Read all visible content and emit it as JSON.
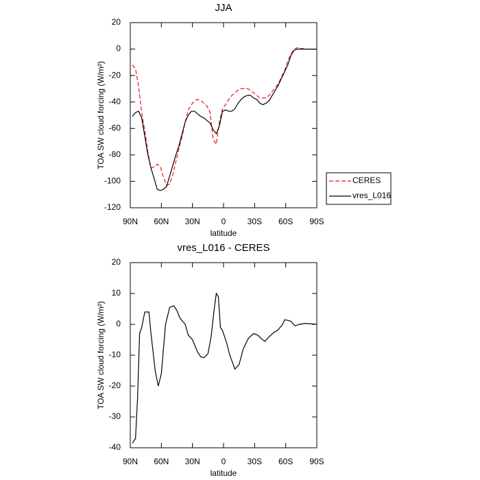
{
  "chart_data": [
    {
      "type": "line",
      "title": "JJA",
      "xlabel": "latitude",
      "ylabel": "TOA SW cloud forcing (W/m²)",
      "xlim": [
        90,
        -90
      ],
      "xticks": [
        {
          "value": 90,
          "label": "90N"
        },
        {
          "value": 60,
          "label": "60N"
        },
        {
          "value": 30,
          "label": "30N"
        },
        0,
        {
          "value": -30,
          "label": "30S"
        },
        {
          "value": -60,
          "label": "60S"
        },
        {
          "value": -90,
          "label": "90S"
        }
      ],
      "ylim": [
        -120,
        20
      ],
      "yticks": [
        -120,
        -100,
        -80,
        -60,
        -40,
        -20,
        0,
        20
      ],
      "legend": "right",
      "x": [
        88,
        85,
        82,
        79,
        76,
        73,
        70,
        67,
        64,
        61,
        58,
        55,
        52,
        49,
        46,
        43,
        40,
        37,
        34,
        31,
        28,
        25,
        22,
        19,
        16,
        13,
        10,
        7,
        4,
        1,
        -2,
        -5,
        -8,
        -11,
        -14,
        -17,
        -20,
        -23,
        -26,
        -29,
        -32,
        -35,
        -38,
        -41,
        -44,
        -47,
        -50,
        -53,
        -56,
        -59,
        -62,
        -65,
        -68,
        -71,
        -80,
        -90
      ],
      "series": [
        {
          "name": "CERES",
          "color": "#e8141c",
          "line_style": "dashed",
          "values": [
            -12,
            -15,
            -28,
            -48,
            -62,
            -78,
            -90,
            -89,
            -87,
            -89,
            -97,
            -103,
            -102,
            -95,
            -85,
            -75,
            -66,
            -55,
            -46,
            -42,
            -39,
            -38,
            -39,
            -41,
            -43,
            -48,
            -68,
            -72,
            -55,
            -45,
            -42,
            -38,
            -35,
            -33,
            -31,
            -30,
            -30,
            -30,
            -31,
            -33,
            -35,
            -37,
            -37,
            -37,
            -35,
            -32,
            -29,
            -26,
            -21,
            -16,
            -9,
            -4,
            0,
            1,
            0,
            0
          ]
        },
        {
          "name": "vres_L016",
          "color": "#000000",
          "line_style": "solid",
          "values": [
            -51,
            -48,
            -47,
            -52,
            -66,
            -80,
            -90,
            -98,
            -106,
            -107,
            -106,
            -104,
            -96,
            -88,
            -80,
            -73,
            -64,
            -55,
            -50,
            -47,
            -47,
            -49,
            -51,
            -52,
            -54,
            -56,
            -61,
            -64,
            -58,
            -47,
            -46,
            -47,
            -47,
            -45,
            -41,
            -38,
            -36,
            -35,
            -35,
            -37,
            -38,
            -41,
            -42,
            -41,
            -39,
            -35,
            -31,
            -27,
            -22,
            -17,
            -12,
            -5,
            -1,
            0,
            0,
            0
          ]
        }
      ]
    },
    {
      "type": "line",
      "title": "vres_L016 - CERES",
      "xlabel": "latitude",
      "ylabel": "TOA SW cloud forcing (W/m²)",
      "xlim": [
        90,
        -90
      ],
      "xticks": [
        {
          "value": 90,
          "label": "90N"
        },
        {
          "value": 60,
          "label": "60N"
        },
        {
          "value": 30,
          "label": "30N"
        },
        0,
        {
          "value": -30,
          "label": "30S"
        },
        {
          "value": -60,
          "label": "60S"
        },
        {
          "value": -90,
          "label": "90S"
        }
      ],
      "ylim": [
        -40,
        20
      ],
      "yticks": [
        -40,
        -30,
        -20,
        -10,
        0,
        10,
        20
      ],
      "color": "#000000",
      "x": [
        88,
        85,
        83,
        81,
        79,
        76,
        72,
        70,
        66,
        63,
        60,
        56,
        52,
        48,
        45,
        42,
        37,
        34,
        30,
        25,
        22,
        19,
        15,
        12,
        9,
        7,
        5,
        3,
        1,
        -3,
        -6,
        -11,
        -15,
        -19,
        -24,
        -29,
        -33,
        -36,
        -40,
        -44,
        -49,
        -52,
        -57,
        -59,
        -62,
        -65,
        -69,
        -73,
        -79,
        -90
      ],
      "values": [
        -38.5,
        -37,
        -24,
        -3,
        -1,
        4,
        4,
        -3,
        -15,
        -20,
        -16,
        0,
        5.5,
        6,
        4.5,
        2,
        0,
        -3.5,
        -5,
        -9,
        -10.5,
        -10.8,
        -9.5,
        -4,
        5,
        10,
        9,
        -1,
        -2,
        -6,
        -10,
        -14.5,
        -13,
        -8,
        -4.5,
        -3,
        -3.5,
        -4.5,
        -5.5,
        -4,
        -2.5,
        -2,
        0,
        1.5,
        1.3,
        1,
        -0.5,
        0,
        0.3,
        0
      ]
    }
  ]
}
